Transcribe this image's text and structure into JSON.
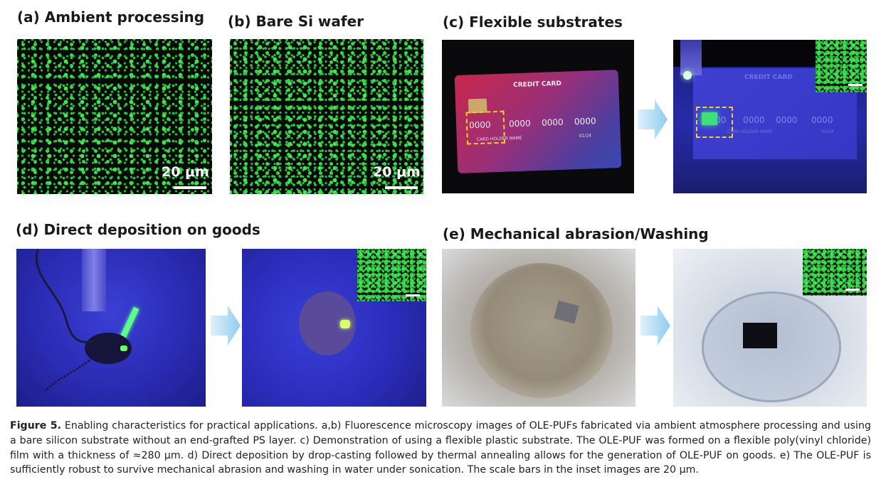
{
  "panels": {
    "a": {
      "label": "(a) Ambient processing",
      "scale": "20 μm"
    },
    "b": {
      "label": "(b) Bare Si wafer",
      "scale": "20 μm"
    },
    "c": {
      "label": "(c) Flexible substrates",
      "card": {
        "title": "CREDIT CARD",
        "numbers": [
          "0000",
          "0000",
          "0000",
          "0000"
        ],
        "holder": "CARD HOLDER NAME",
        "expiry": "01/24"
      }
    },
    "d": {
      "label": "(d) Direct deposition on goods"
    },
    "e": {
      "label": "(e) Mechanical abrasion/Washing"
    }
  },
  "caption": {
    "figure": "Figure 5.",
    "text": "Enabling characteristics for practical applications. a,b) Fluorescence microscopy images of OLE-PUFs fabricated via ambient atmosphere processing and using a bare silicon substrate without an end-grafted PS layer. c) Demonstration of using a flexible plastic substrate. The OLE-PUF was formed on a flexible poly(vinyl chloride) film with a thickness of ≈280 μm. d) Direct deposition by drop-casting followed by thermal annealing allows for the generation of OLE-PUF on goods. e) The OLE-PUF is sufficiently robust to survive mechanical abrasion and washing in water under sonication. The scale bars in the inset images are 20 μm."
  },
  "colors": {
    "fluorescence": "#39d84a",
    "arrow": "#a9d9f2",
    "highlight_box": "#f2d21c",
    "uv_background": "#2b2fb8"
  }
}
